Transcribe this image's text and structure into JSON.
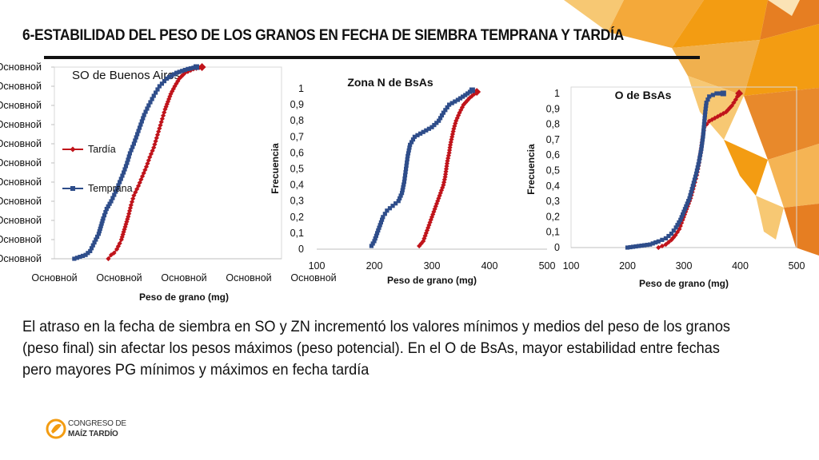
{
  "slide": {
    "title": "6-ESTABILIDAD DEL PESO DE LOS GRANOS EN FECHA DE SIEMBRA TEMPRANA Y TARDÍA",
    "caption": "El atraso en la fecha de siembra en SO y ZN incrementó los valores mínimos y medios del peso de los granos (peso final) sin afectar los pesos máximos (peso potencial). En el O de BsAs, mayor estabilidad entre fechas pero mayores PG mínimos y máximos en fecha tardía",
    "logo": {
      "line1": "CONGRESO DE",
      "line2": "MAÍZ TARDÍO"
    },
    "colors": {
      "tardia": "#c0141b",
      "temprana": "#2e4d8a",
      "accent": "#f39c12"
    }
  },
  "chart_data": [
    {
      "type": "line",
      "title": "SO de Buenos Aires",
      "xlabel": "Peso de grano (mg)",
      "ylabel": "",
      "x_tick_labels": [
        "Основной",
        "Основной",
        "Основной",
        "Основной",
        "Основной"
      ],
      "y_tick_labels": [
        "Основной",
        "Основной",
        "Основной",
        "Основной",
        "Основной",
        "Основной",
        "Основной",
        "Основной",
        "Основной",
        "Основной",
        "Основной"
      ],
      "xlim": [
        100,
        500
      ],
      "ylim": [
        0,
        1
      ],
      "legend": "left",
      "series": [
        {
          "name": "Tardía",
          "points": [
            [
              195,
              0
            ],
            [
              200,
              0.02
            ],
            [
              205,
              0.03
            ],
            [
              210,
              0.05
            ],
            [
              215,
              0.08
            ],
            [
              218,
              0.1
            ],
            [
              222,
              0.14
            ],
            [
              226,
              0.18
            ],
            [
              230,
              0.22
            ],
            [
              235,
              0.28
            ],
            [
              240,
              0.33
            ],
            [
              248,
              0.38
            ],
            [
              255,
              0.43
            ],
            [
              262,
              0.48
            ],
            [
              268,
              0.53
            ],
            [
              275,
              0.58
            ],
            [
              280,
              0.63
            ],
            [
              285,
              0.68
            ],
            [
              290,
              0.73
            ],
            [
              295,
              0.78
            ],
            [
              300,
              0.82
            ],
            [
              305,
              0.86
            ],
            [
              312,
              0.9
            ],
            [
              320,
              0.94
            ],
            [
              330,
              0.97
            ],
            [
              345,
              0.99
            ],
            [
              360,
              1.0
            ]
          ]
        },
        {
          "name": "Temprana",
          "points": [
            [
              135,
              0
            ],
            [
              145,
              0.01
            ],
            [
              155,
              0.02
            ],
            [
              163,
              0.04
            ],
            [
              168,
              0.07
            ],
            [
              173,
              0.1
            ],
            [
              178,
              0.13
            ],
            [
              182,
              0.17
            ],
            [
              186,
              0.21
            ],
            [
              192,
              0.26
            ],
            [
              200,
              0.3
            ],
            [
              208,
              0.35
            ],
            [
              215,
              0.4
            ],
            [
              222,
              0.45
            ],
            [
              228,
              0.5
            ],
            [
              233,
              0.55
            ],
            [
              240,
              0.6
            ],
            [
              246,
              0.65
            ],
            [
              252,
              0.7
            ],
            [
              258,
              0.75
            ],
            [
              266,
              0.8
            ],
            [
              275,
              0.85
            ],
            [
              285,
              0.9
            ],
            [
              298,
              0.94
            ],
            [
              315,
              0.97
            ],
            [
              335,
              0.99
            ],
            [
              350,
              1.0
            ]
          ]
        }
      ]
    },
    {
      "type": "line",
      "title": "Zona N de BsAs",
      "xlabel": "Peso de grano (mg)",
      "ylabel": "Frecuencia",
      "x_ticks": [
        100,
        200,
        300,
        400,
        500
      ],
      "y_ticks": [
        "0",
        "0,1",
        "0,2",
        "0,3",
        "0,4",
        "0,5",
        "0,6",
        "0,7",
        "0,8",
        "0,9",
        "1"
      ],
      "xlim": [
        100,
        500
      ],
      "ylim": [
        0,
        1
      ],
      "series": [
        {
          "name": "",
          "color_key": "tardia",
          "points": [
            [
              278,
              0.02
            ],
            [
              285,
              0.05
            ],
            [
              290,
              0.1
            ],
            [
              295,
              0.15
            ],
            [
              300,
              0.2
            ],
            [
              305,
              0.25
            ],
            [
              310,
              0.3
            ],
            [
              315,
              0.35
            ],
            [
              320,
              0.4
            ],
            [
              323,
              0.45
            ],
            [
              325,
              0.5
            ],
            [
              327,
              0.55
            ],
            [
              330,
              0.6
            ],
            [
              332,
              0.65
            ],
            [
              335,
              0.7
            ],
            [
              338,
              0.75
            ],
            [
              342,
              0.8
            ],
            [
              348,
              0.85
            ],
            [
              355,
              0.9
            ],
            [
              365,
              0.94
            ],
            [
              378,
              0.98
            ]
          ]
        },
        {
          "name": "",
          "color_key": "temprana",
          "points": [
            [
              195,
              0.02
            ],
            [
              200,
              0.05
            ],
            [
              205,
              0.1
            ],
            [
              210,
              0.15
            ],
            [
              215,
              0.2
            ],
            [
              222,
              0.24
            ],
            [
              232,
              0.27
            ],
            [
              242,
              0.3
            ],
            [
              248,
              0.35
            ],
            [
              252,
              0.42
            ],
            [
              255,
              0.5
            ],
            [
              258,
              0.58
            ],
            [
              262,
              0.65
            ],
            [
              270,
              0.7
            ],
            [
              285,
              0.73
            ],
            [
              300,
              0.76
            ],
            [
              312,
              0.8
            ],
            [
              320,
              0.85
            ],
            [
              330,
              0.9
            ],
            [
              345,
              0.93
            ],
            [
              358,
              0.96
            ],
            [
              370,
              0.99
            ]
          ]
        }
      ]
    },
    {
      "type": "line",
      "title": "O de BsAs",
      "xlabel": "Peso de grano (mg)",
      "ylabel": "Frecuencia",
      "x_ticks": [
        100,
        200,
        300,
        400,
        500
      ],
      "y_ticks": [
        "0",
        "0,1",
        "0,2",
        "0,3",
        "0,4",
        "0,5",
        "0,6",
        "0,7",
        "0,8",
        "0,9",
        "1"
      ],
      "xlim": [
        100,
        500
      ],
      "ylim": [
        0,
        1
      ],
      "series": [
        {
          "name": "",
          "color_key": "tardia",
          "points": [
            [
              255,
              0
            ],
            [
              268,
              0.02
            ],
            [
              278,
              0.05
            ],
            [
              285,
              0.08
            ],
            [
              292,
              0.12
            ],
            [
              298,
              0.18
            ],
            [
              305,
              0.25
            ],
            [
              312,
              0.32
            ],
            [
              318,
              0.4
            ],
            [
              323,
              0.47
            ],
            [
              327,
              0.55
            ],
            [
              330,
              0.62
            ],
            [
              333,
              0.7
            ],
            [
              336,
              0.78
            ],
            [
              345,
              0.82
            ],
            [
              360,
              0.85
            ],
            [
              375,
              0.88
            ],
            [
              385,
              0.92
            ],
            [
              392,
              0.96
            ],
            [
              398,
              1.0
            ]
          ]
        },
        {
          "name": "",
          "color_key": "temprana",
          "points": [
            [
              200,
              0
            ],
            [
              220,
              0.01
            ],
            [
              240,
              0.02
            ],
            [
              255,
              0.04
            ],
            [
              268,
              0.06
            ],
            [
              278,
              0.09
            ],
            [
              286,
              0.13
            ],
            [
              294,
              0.18
            ],
            [
              302,
              0.25
            ],
            [
              310,
              0.32
            ],
            [
              316,
              0.4
            ],
            [
              322,
              0.48
            ],
            [
              327,
              0.56
            ],
            [
              331,
              0.64
            ],
            [
              334,
              0.72
            ],
            [
              336,
              0.8
            ],
            [
              338,
              0.88
            ],
            [
              340,
              0.94
            ],
            [
              345,
              0.98
            ],
            [
              358,
              1.0
            ],
            [
              370,
              1.0
            ]
          ]
        }
      ]
    }
  ]
}
